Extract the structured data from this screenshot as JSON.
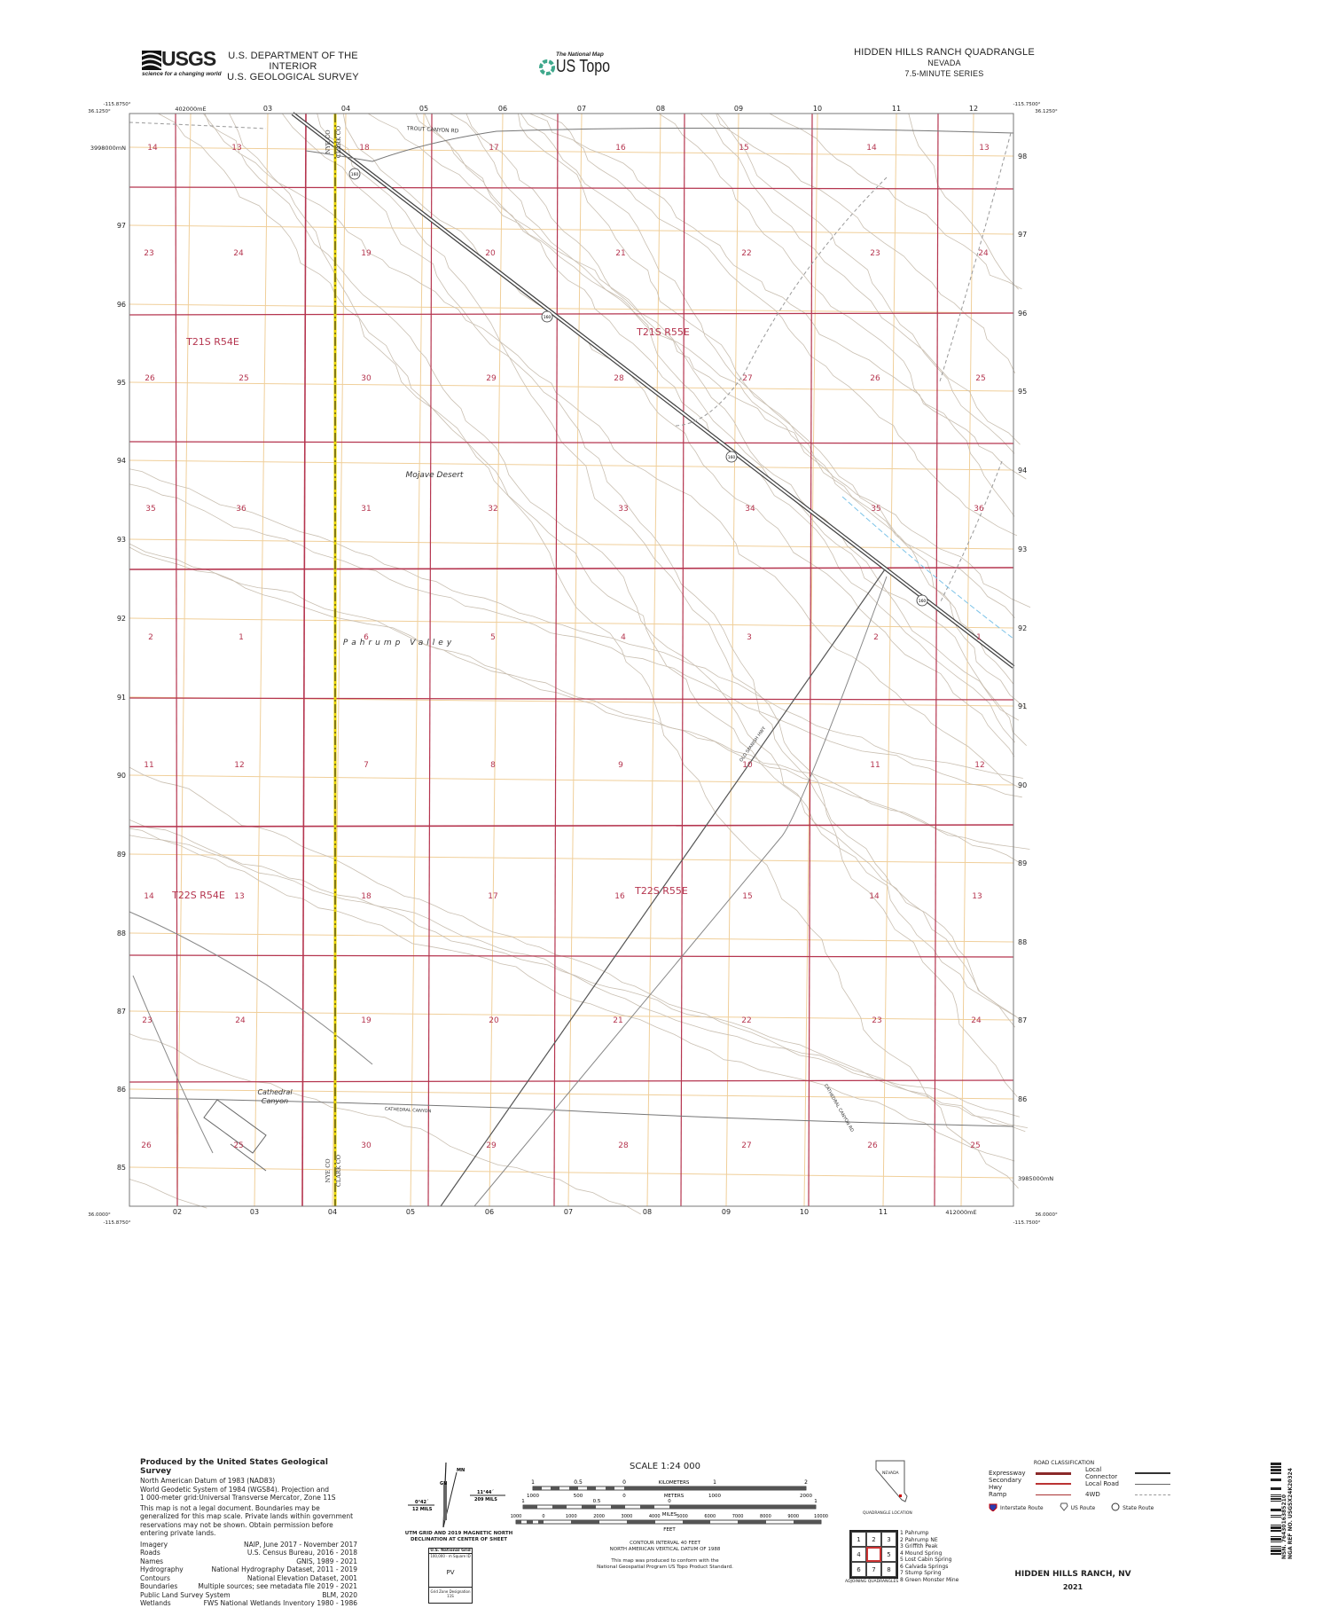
{
  "header": {
    "usgs_logo_text": "USGS",
    "usgs_tagline": "science for a changing world",
    "dept_line1": "U.S. DEPARTMENT OF THE INTERIOR",
    "dept_line2": "U.S. GEOLOGICAL SURVEY",
    "national_map": "The National Map",
    "us_topo": "US Topo",
    "quad_title": "HIDDEN HILLS RANCH QUADRANGLE",
    "state": "NEVADA",
    "series": "7.5-MINUTE SERIES"
  },
  "corners": {
    "top_left_lon": "-115.8750°",
    "top_left_lat": "36.1250°",
    "top_right_lon": "-115.7500°",
    "top_right_lat": "36.1250°",
    "bottom_left_lat": "36.0000°",
    "bottom_left_lon": "-115.8750°",
    "bottom_right_lon": "-115.7500°",
    "bottom_right_lat": "36.0000°"
  },
  "utm": {
    "top_eastings": [
      "402000mE",
      "03",
      "04",
      "05",
      "06",
      "07",
      "08",
      "09",
      "10",
      "11",
      "12"
    ],
    "bottom_eastings": [
      "02",
      "03",
      "04",
      "05",
      "06",
      "07",
      "08",
      "09",
      "10",
      "11",
      "412000mE"
    ],
    "left_northings": [
      "3998000mN",
      "97",
      "96",
      "95",
      "94",
      "93",
      "92",
      "91",
      "90",
      "89",
      "88",
      "87",
      "86",
      "85"
    ],
    "right_northings": [
      "98",
      "97",
      "96",
      "95",
      "94",
      "93",
      "92",
      "91",
      "90",
      "89",
      "88",
      "87",
      "86",
      "3985000mN"
    ]
  },
  "sections": [
    [
      "14",
      "13",
      "18",
      "17",
      "16",
      "15",
      "14",
      "13"
    ],
    [
      "23",
      "24",
      "19",
      "20",
      "21",
      "22",
      "23",
      "24"
    ],
    [
      "26",
      "25",
      "30",
      "29",
      "28",
      "27",
      "26",
      "25"
    ],
    [
      "35",
      "36",
      "31",
      "32",
      "33",
      "34",
      "35",
      "36"
    ],
    [
      "2",
      "1",
      "6",
      "5",
      "4",
      "3",
      "2",
      "1"
    ],
    [
      "11",
      "12",
      "7",
      "8",
      "9",
      "10",
      "11",
      "12"
    ],
    [
      "14",
      "13",
      "18",
      "17",
      "16",
      "15",
      "14",
      "13"
    ],
    [
      "23",
      "24",
      "19",
      "20",
      "21",
      "22",
      "23",
      "24"
    ],
    [
      "26",
      "25",
      "30",
      "29",
      "28",
      "27",
      "26",
      "25"
    ]
  ],
  "townships": [
    "T21S R54E",
    "T21S R55E",
    "T22S R54E",
    "T22S R55E"
  ],
  "place_names": [
    "Mojave Desert",
    "Pahrump Valley",
    "Cathedral",
    "Canyon"
  ],
  "road_names": [
    "TROUT CANYON RD",
    "OLD SPANISH HWY",
    "CATHEDRAL CANYON",
    "CATHEDRAL CANYON RD"
  ],
  "county_labels": [
    "NYE CO",
    "CLARK CO"
  ],
  "route_shield": "160",
  "colors": {
    "section_line": "#b5354f",
    "utm_grid": "#f0cf9a",
    "contour": "#c9bfb1",
    "road": "#555555",
    "county_line": "#e9d400"
  },
  "footer": {
    "produced_by": "Produced by the United States Geological Survey",
    "datum_lines": [
      "North American Datum of 1983 (NAD83)",
      "World Geodetic System of 1984 (WGS84). Projection and",
      "1 000-meter grid:Universal Transverse Mercator, Zone 11S"
    ],
    "disclaimer": [
      "This map is not a legal document. Boundaries may be",
      "generalized for this map scale. Private lands within government",
      "reservations may not be shown. Obtain permission before",
      "entering private lands."
    ],
    "credits": [
      {
        "item": "Imagery",
        "source": "NAIP, June 2017 - November 2017"
      },
      {
        "item": "Roads",
        "source": "U.S. Census Bureau, 2016 - 2018"
      },
      {
        "item": "Names",
        "source": "GNIS, 1989 - 2021"
      },
      {
        "item": "Hydrography",
        "source": "National Hydrography Dataset, 2011 - 2019"
      },
      {
        "item": "Contours",
        "source": "National Elevation Dataset, 2001"
      },
      {
        "item": "Boundaries",
        "source": "Multiple sources; see metadata file 2019 - 2021"
      },
      {
        "item": "Public Land Survey System",
        "source": "BLM, 2020"
      },
      {
        "item": "Wetlands",
        "source": "FWS National Wetlands Inventory 1980 - 1986"
      }
    ],
    "declination": {
      "mn": "MN",
      "gn": "GN",
      "left_angle": "0°42´",
      "left_mils": "12 MILS",
      "right_angle": "11°44´",
      "right_mils": "209 MILS",
      "caption1": "UTM GRID AND 2019 MAGNETIC NORTH",
      "caption2": "DECLINATION AT CENTER OF SHEET"
    },
    "grid_box": {
      "title": "U.S. National Grid",
      "subtitle": "100,000 - m Square ID",
      "square_id": "PV",
      "gzd_label": "Grid Zone Designation",
      "gzd": "11S"
    },
    "scale": {
      "title": "SCALE 1:24 000",
      "km_ticks": [
        "1",
        "0.5",
        "0",
        "1",
        "2"
      ],
      "km_label": "KILOMETERS",
      "m_ticks": [
        "1000",
        "500",
        "0",
        "1000",
        "2000"
      ],
      "m_label": "METERS",
      "mi_ticks": [
        "1",
        "0.5",
        "0",
        "1"
      ],
      "mi_label": "MILES",
      "ft_ticks": [
        "1000",
        "0",
        "1000",
        "2000",
        "3000",
        "4000",
        "5000",
        "6000",
        "7000",
        "8000",
        "9000",
        "10000"
      ],
      "ft_label": "FEET"
    },
    "contour_interval": "CONTOUR INTERVAL 40 FEET",
    "vertical_datum": "NORTH AMERICAN VERTICAL DATUM OF 1988",
    "conform1": "This map was produced to conform with the",
    "conform2": "National Geospatial Program US Topo Product Standard.",
    "location_state": "NEVADA",
    "location_caption": "QUADRANGLE LOCATION",
    "road_class": {
      "title": "ROAD CLASSIFICATION",
      "left": [
        "Expressway",
        "Secondary Hwy",
        "Ramp"
      ],
      "right": [
        "Local Connector",
        "Local Road",
        "4WD"
      ],
      "routes": [
        "Interstate Route",
        "US Route",
        "State Route"
      ]
    },
    "adjoining": {
      "cells": [
        "1",
        "2",
        "3",
        "4",
        "",
        "5",
        "6",
        "7",
        "8"
      ],
      "names": [
        "1 Pahrump",
        "2 Pahrump NE",
        "3 Griffith Peak",
        "4 Mound Spring",
        "5 Lost Cabin Spring",
        "6 Calvada Springs",
        "7 Stump Spring",
        "8 Green Monster Mine"
      ],
      "caption": "ADJOINING QUADRANGLES"
    },
    "sheet_title": "HIDDEN HILLS RANCH, NV",
    "year": "2021",
    "barcode_line1": "NSN. 7643016385210",
    "barcode_line2": "NGA REF NO. USGSX24K20324"
  }
}
